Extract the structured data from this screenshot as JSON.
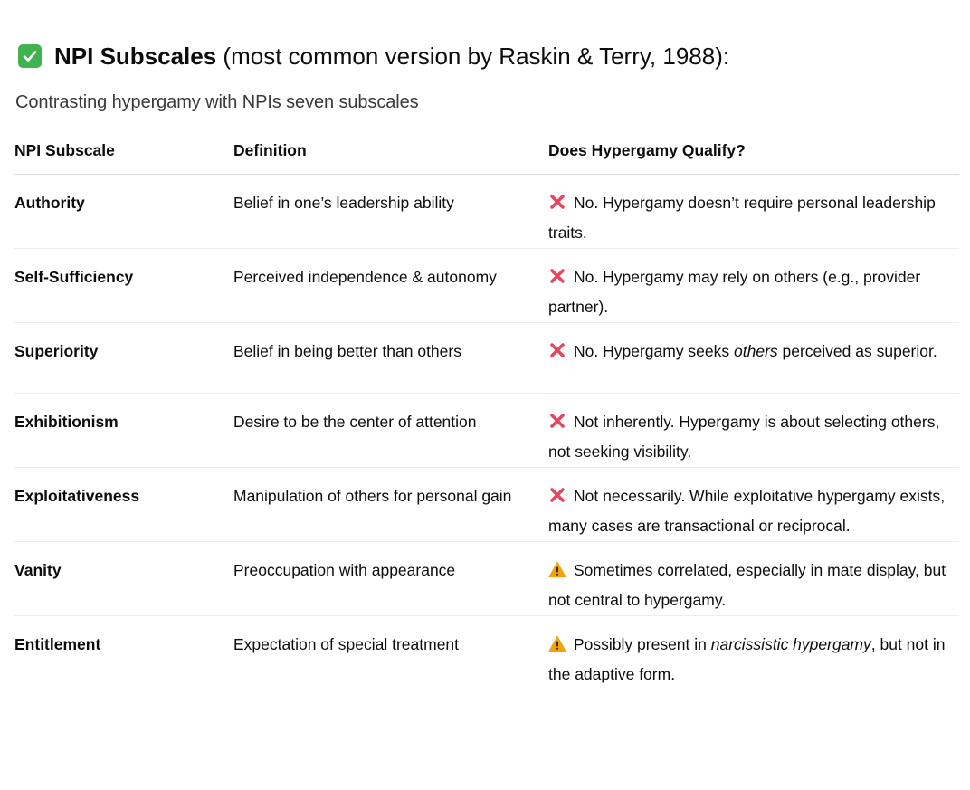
{
  "heading": {
    "bold": "NPI Subscales",
    "rest": " (most common version by Raskin & Terry, 1988):",
    "icon": "white-check-mark-icon",
    "icon_color": "#3fb34f"
  },
  "subtitle": "Contrasting hypergamy with NPIs seven subscales",
  "table": {
    "headers": [
      "NPI Subscale",
      "Definition",
      "Does Hypergamy Qualify?"
    ],
    "rows": [
      {
        "subscale": "Authority",
        "definition": "Belief in one’s leadership ability",
        "icon": "cross-mark-icon",
        "verdict": [
          "No. Hypergamy doesn’t require personal leadership traits."
        ]
      },
      {
        "subscale": "Self-Sufficiency",
        "definition": "Perceived independence & autonomy",
        "icon": "cross-mark-icon",
        "verdict": [
          "No. Hypergamy may rely on others (e.g., provider partner)."
        ]
      },
      {
        "subscale": "Superiority",
        "definition": "Belief in being better than others",
        "icon": "cross-mark-icon",
        "verdict": [
          "No. Hypergamy seeks ",
          "others",
          " perceived as superior."
        ]
      },
      {
        "subscale": "Exhibitionism",
        "definition": "Desire to be the center of attention",
        "icon": "cross-mark-icon",
        "verdict": [
          "Not inherently. Hypergamy is about selecting others, not seeking visibility."
        ]
      },
      {
        "subscale": "Exploitativeness",
        "definition": "Manipulation of others for personal gain",
        "icon": "cross-mark-icon",
        "verdict": [
          "Not necessarily. While exploitative hypergamy exists, many cases are transactional or reciprocal."
        ]
      },
      {
        "subscale": "Vanity",
        "definition": "Preoccupation with appearance",
        "icon": "warning-icon",
        "verdict": [
          "Sometimes correlated, especially in mate display, but not central to hypergamy."
        ]
      },
      {
        "subscale": "Entitlement",
        "definition": "Expectation of special treatment",
        "icon": "warning-icon",
        "verdict": [
          "Possibly present in ",
          "narcissistic hypergamy",
          ", but not in the adaptive form."
        ]
      }
    ]
  },
  "colors": {
    "cross": "#e8465f",
    "warning": "#f2a20c",
    "text": "#0d0d0d",
    "row_border": "#ececec"
  }
}
